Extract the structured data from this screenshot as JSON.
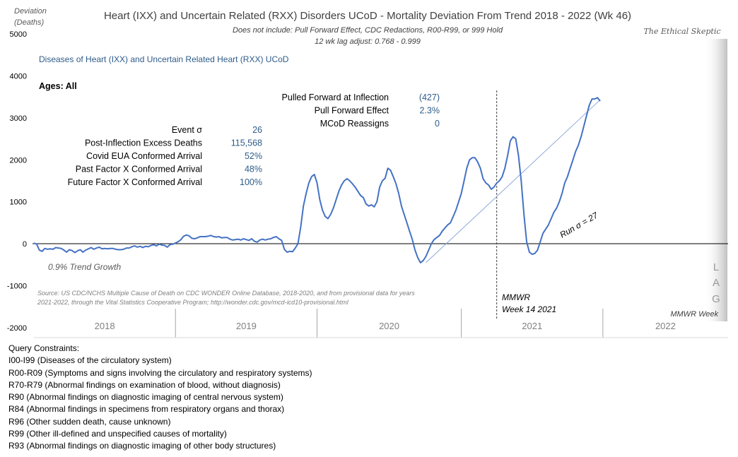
{
  "header": {
    "title": "Heart (IXX) and Uncertain Related (RXX) Disorders UCoD - Mortality Deviation From Trend  2018 - 2022 (Wk 46)",
    "subtitle1": "Does not include: Pull Forward Effect,  CDC Redactions, R00-R99, or 999 Hold",
    "subtitle2": "12 wk lag adjust: 0.768 - 0.999",
    "brand": "The Ethical Skeptic"
  },
  "axis": {
    "ylabel_line1": "Deviation",
    "ylabel_line2": "(Deaths)",
    "xlabel": "MMWR Week"
  },
  "series_label": "Diseases of Heart (IXX) and Uncertain Related Heart (RXX) UCoD",
  "ages": "Ages: All",
  "stats_right": [
    {
      "label": "Pulled Forward at Inflection",
      "value": "(427)"
    },
    {
      "label": "Pull Forward Effect",
      "value": "2.3%"
    },
    {
      "label": "MCoD Reassigns",
      "value": "0"
    }
  ],
  "stats_left": [
    {
      "label": "Event σ",
      "value": "26"
    },
    {
      "label": "Post-Inflection Excess Deaths",
      "value": "115,568"
    },
    {
      "label": "Covid EUA Conformed Arrival",
      "value": "52%"
    },
    {
      "label": "Past Factor X Conformed Arrival",
      "value": "48%"
    },
    {
      "label": "Future Factor X Conformed Arrival",
      "value": "100%"
    }
  ],
  "annotations": {
    "trend_growth": "0.9% Trend Growth",
    "run_sigma": "Run σ = 27",
    "mmwr_line1": "MMWR",
    "mmwr_line2": "Week 14 2021",
    "lag": [
      "L",
      "A",
      "G"
    ],
    "source_line1": "Source: US CDC/NCHS Multiple Cause of Death on CDC WONDER Online Database, 2018-2020, and from provisional data for years",
    "source_line2": "2021-2022, through the Vital Statistics Cooperative Program; http://wonder.cdc.gov/mcd-icd10-provisional.html"
  },
  "constraints": {
    "heading": "Query Constraints:",
    "items": [
      "I00-I99 (Diseases of the circulatory system)",
      "R00-R09 (Symptoms and signs involving the circulatory and respiratory systems)",
      "R70-R79 (Abnormal findings on examination of blood, without diagnosis)",
      "R90 (Abnormal findings on diagnostic imaging of central nervous system)",
      "R84 (Abnormal findings in specimens from respiratory organs and thorax)",
      "R96 (Other sudden death, cause unknown)",
      "R99 (Other ill-defined and unspecified causes of mortality)",
      "R93 (Abnormal findings on diagnostic imaging of other body structures)"
    ]
  },
  "colors": {
    "line": "#4472c4",
    "trend_line": "#8ea9db",
    "lag_band": "#d9d9d9"
  },
  "chart_data": {
    "type": "line",
    "ylim": [
      -2000,
      5000
    ],
    "yticks": [
      -2000,
      -1000,
      0,
      1000,
      2000,
      3000,
      4000,
      5000
    ],
    "categories": [
      "2018",
      "2019",
      "2020",
      "2021",
      "2022"
    ],
    "x_week_range": [
      1,
      256
    ],
    "year_start_weeks": [
      1,
      53,
      105,
      158,
      210
    ],
    "inflection_week": 171,
    "grid": false,
    "series": [
      {
        "values": [
          [
            1,
            20
          ],
          [
            2,
            -10
          ],
          [
            3,
            -150
          ],
          [
            4,
            -180
          ],
          [
            5,
            -110
          ],
          [
            6,
            -130
          ],
          [
            7,
            -120
          ],
          [
            8,
            -130
          ],
          [
            9,
            -90
          ],
          [
            10,
            -100
          ],
          [
            11,
            -110
          ],
          [
            12,
            -150
          ],
          [
            13,
            -200
          ],
          [
            14,
            -140
          ],
          [
            15,
            -160
          ],
          [
            16,
            -210
          ],
          [
            17,
            -170
          ],
          [
            18,
            -140
          ],
          [
            19,
            -200
          ],
          [
            20,
            -150
          ],
          [
            21,
            -120
          ],
          [
            22,
            -90
          ],
          [
            23,
            -130
          ],
          [
            24,
            -100
          ],
          [
            25,
            -80
          ],
          [
            26,
            -120
          ],
          [
            27,
            -110
          ],
          [
            28,
            -120
          ],
          [
            29,
            -110
          ],
          [
            30,
            -110
          ],
          [
            31,
            -130
          ],
          [
            32,
            -140
          ],
          [
            33,
            -140
          ],
          [
            34,
            -130
          ],
          [
            35,
            -100
          ],
          [
            36,
            -100
          ],
          [
            37,
            -70
          ],
          [
            38,
            -50
          ],
          [
            39,
            -80
          ],
          [
            40,
            -60
          ],
          [
            41,
            -90
          ],
          [
            42,
            -60
          ],
          [
            43,
            -70
          ],
          [
            44,
            -40
          ],
          [
            45,
            -20
          ],
          [
            46,
            -50
          ],
          [
            47,
            -10
          ],
          [
            48,
            -30
          ],
          [
            49,
            -40
          ],
          [
            50,
            -80
          ],
          [
            51,
            -20
          ],
          [
            52,
            -10
          ],
          [
            53,
            20
          ],
          [
            54,
            50
          ],
          [
            55,
            100
          ],
          [
            56,
            180
          ],
          [
            57,
            210
          ],
          [
            58,
            190
          ],
          [
            59,
            130
          ],
          [
            60,
            120
          ],
          [
            61,
            140
          ],
          [
            62,
            170
          ],
          [
            63,
            170
          ],
          [
            64,
            170
          ],
          [
            65,
            180
          ],
          [
            66,
            200
          ],
          [
            67,
            170
          ],
          [
            68,
            160
          ],
          [
            69,
            170
          ],
          [
            70,
            140
          ],
          [
            71,
            150
          ],
          [
            72,
            150
          ],
          [
            73,
            110
          ],
          [
            74,
            90
          ],
          [
            75,
            100
          ],
          [
            76,
            110
          ],
          [
            77,
            90
          ],
          [
            78,
            120
          ],
          [
            79,
            100
          ],
          [
            80,
            80
          ],
          [
            81,
            120
          ],
          [
            82,
            60
          ],
          [
            83,
            40
          ],
          [
            84,
            90
          ],
          [
            85,
            110
          ],
          [
            86,
            90
          ],
          [
            87,
            110
          ],
          [
            88,
            120
          ],
          [
            89,
            150
          ],
          [
            90,
            170
          ],
          [
            91,
            120
          ],
          [
            92,
            80
          ],
          [
            93,
            -130
          ],
          [
            94,
            -200
          ],
          [
            95,
            -180
          ],
          [
            96,
            -190
          ],
          [
            97,
            -100
          ],
          [
            98,
            0
          ],
          [
            99,
            400
          ],
          [
            100,
            900
          ],
          [
            101,
            1200
          ],
          [
            102,
            1450
          ],
          [
            103,
            1600
          ],
          [
            104,
            1650
          ],
          [
            105,
            1450
          ],
          [
            106,
            1050
          ],
          [
            107,
            800
          ],
          [
            108,
            650
          ],
          [
            109,
            600
          ],
          [
            110,
            700
          ],
          [
            111,
            850
          ],
          [
            112,
            1050
          ],
          [
            113,
            1250
          ],
          [
            114,
            1400
          ],
          [
            115,
            1500
          ],
          [
            116,
            1550
          ],
          [
            117,
            1500
          ],
          [
            118,
            1430
          ],
          [
            119,
            1350
          ],
          [
            120,
            1250
          ],
          [
            121,
            1150
          ],
          [
            122,
            1100
          ],
          [
            123,
            950
          ],
          [
            124,
            900
          ],
          [
            125,
            930
          ],
          [
            126,
            880
          ],
          [
            127,
            1000
          ],
          [
            128,
            1350
          ],
          [
            129,
            1500
          ],
          [
            130,
            1560
          ],
          [
            131,
            1800
          ],
          [
            132,
            1750
          ],
          [
            133,
            1600
          ],
          [
            134,
            1430
          ],
          [
            135,
            1200
          ],
          [
            136,
            900
          ],
          [
            137,
            700
          ],
          [
            138,
            500
          ],
          [
            139,
            300
          ],
          [
            140,
            100
          ],
          [
            141,
            -150
          ],
          [
            142,
            -330
          ],
          [
            143,
            -450
          ],
          [
            144,
            -400
          ],
          [
            145,
            -300
          ],
          [
            146,
            -150
          ],
          [
            147,
            0
          ],
          [
            148,
            100
          ],
          [
            149,
            150
          ],
          [
            150,
            200
          ],
          [
            151,
            300
          ],
          [
            152,
            380
          ],
          [
            153,
            450
          ],
          [
            154,
            500
          ],
          [
            155,
            650
          ],
          [
            156,
            800
          ],
          [
            157,
            1000
          ],
          [
            158,
            1200
          ],
          [
            159,
            1500
          ],
          [
            160,
            1800
          ],
          [
            161,
            2000
          ],
          [
            162,
            2050
          ],
          [
            163,
            2050
          ],
          [
            164,
            1950
          ],
          [
            165,
            1800
          ],
          [
            166,
            1550
          ],
          [
            167,
            1450
          ],
          [
            168,
            1400
          ],
          [
            169,
            1300
          ],
          [
            170,
            1350
          ],
          [
            171,
            1450
          ],
          [
            172,
            1500
          ],
          [
            173,
            1600
          ],
          [
            174,
            1800
          ],
          [
            175,
            2100
          ],
          [
            176,
            2450
          ],
          [
            177,
            2550
          ],
          [
            178,
            2500
          ],
          [
            179,
            2100
          ],
          [
            180,
            1500
          ],
          [
            181,
            700
          ],
          [
            182,
            50
          ],
          [
            183,
            -200
          ],
          [
            184,
            -250
          ],
          [
            185,
            -230
          ],
          [
            186,
            -150
          ],
          [
            187,
            50
          ],
          [
            188,
            250
          ],
          [
            189,
            350
          ],
          [
            190,
            450
          ],
          [
            191,
            600
          ],
          [
            192,
            750
          ],
          [
            193,
            850
          ],
          [
            194,
            1000
          ],
          [
            195,
            1200
          ],
          [
            196,
            1450
          ],
          [
            197,
            1600
          ],
          [
            198,
            1800
          ],
          [
            199,
            2000
          ],
          [
            200,
            2200
          ],
          [
            201,
            2350
          ],
          [
            202,
            2550
          ],
          [
            203,
            2800
          ],
          [
            204,
            3050
          ],
          [
            205,
            3300
          ],
          [
            206,
            3450
          ],
          [
            207,
            3450
          ],
          [
            208,
            3480
          ],
          [
            209,
            3400
          ]
        ]
      }
    ],
    "trend": [
      [
        145,
        -450
      ],
      [
        209,
        3430
      ]
    ]
  }
}
